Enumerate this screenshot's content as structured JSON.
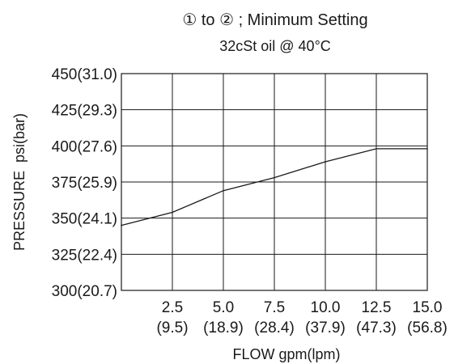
{
  "chart_data": {
    "type": "line",
    "title": "① to ② ; Minimum Setting",
    "subtitle": "32cSt oil @ 40°C",
    "xlabel": "FLOW gpm(lpm)",
    "ylabel": "PRESSURE  psi(bar)",
    "xlim": [
      0,
      15
    ],
    "ylim": [
      300,
      450
    ],
    "x_ticks": [
      {
        "value": 2.5,
        "label": "2.5",
        "sublabel": "(9.5)"
      },
      {
        "value": 5.0,
        "label": "5.0",
        "sublabel": "(18.9)"
      },
      {
        "value": 7.5,
        "label": "7.5",
        "sublabel": "(28.4)"
      },
      {
        "value": 10.0,
        "label": "10.0",
        "sublabel": "(37.9)"
      },
      {
        "value": 12.5,
        "label": "12.5",
        "sublabel": "(47.3)"
      },
      {
        "value": 15.0,
        "label": "15.0",
        "sublabel": "(56.8)"
      }
    ],
    "y_ticks": [
      {
        "value": 300,
        "label": "300(20.7)"
      },
      {
        "value": 325,
        "label": "325(22.4)"
      },
      {
        "value": 350,
        "label": "350(24.1)"
      },
      {
        "value": 375,
        "label": "375(25.9)"
      },
      {
        "value": 400,
        "label": "400(27.6)"
      },
      {
        "value": 425,
        "label": "425(29.3)"
      },
      {
        "value": 450,
        "label": "450(31.0)"
      }
    ],
    "grid": true,
    "series": [
      {
        "x": [
          0,
          2.5,
          5.0,
          7.5,
          10.0,
          12.5,
          15.0
        ],
        "y": [
          345,
          354,
          369,
          378,
          389,
          398,
          398
        ]
      }
    ]
  }
}
